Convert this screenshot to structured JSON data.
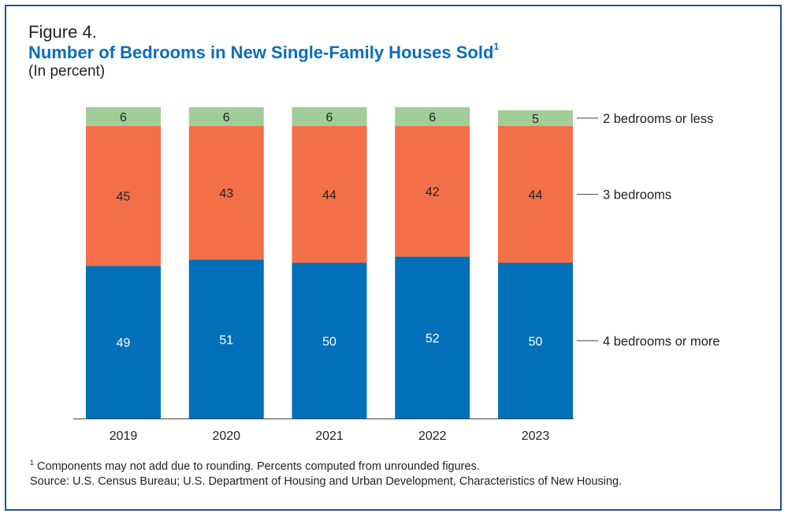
{
  "header": {
    "figure_label": "Figure 4.",
    "title": "Number of Bedrooms in New Single-Family Houses Sold",
    "title_sup": "1",
    "subtitle": "(In percent)"
  },
  "chart_data": {
    "type": "bar",
    "stacked": true,
    "categories": [
      "2019",
      "2020",
      "2021",
      "2022",
      "2023"
    ],
    "series": [
      {
        "name": "4 bedrooms or more",
        "values": [
          49,
          51,
          50,
          52,
          50
        ],
        "color": "#0170b9",
        "label_color": "#ffffff"
      },
      {
        "name": "3 bedrooms",
        "values": [
          45,
          43,
          44,
          42,
          44
        ],
        "color": "#f26f48",
        "label_color": "#222222"
      },
      {
        "name": "2 bedrooms or less",
        "values": [
          6,
          6,
          6,
          6,
          5
        ],
        "color": "#a1cd99",
        "label_color": "#222222"
      }
    ],
    "legend_placement": "right",
    "ylim": [
      0,
      100
    ],
    "grid": false
  },
  "footer": {
    "footnote_sup": "1",
    "footnote": " Components may not add due to rounding. Percents computed from unrounded figures.",
    "source": "Source: U.S. Census Bureau; U.S. Department of Housing and Urban Development, Characteristics of New Housing."
  }
}
